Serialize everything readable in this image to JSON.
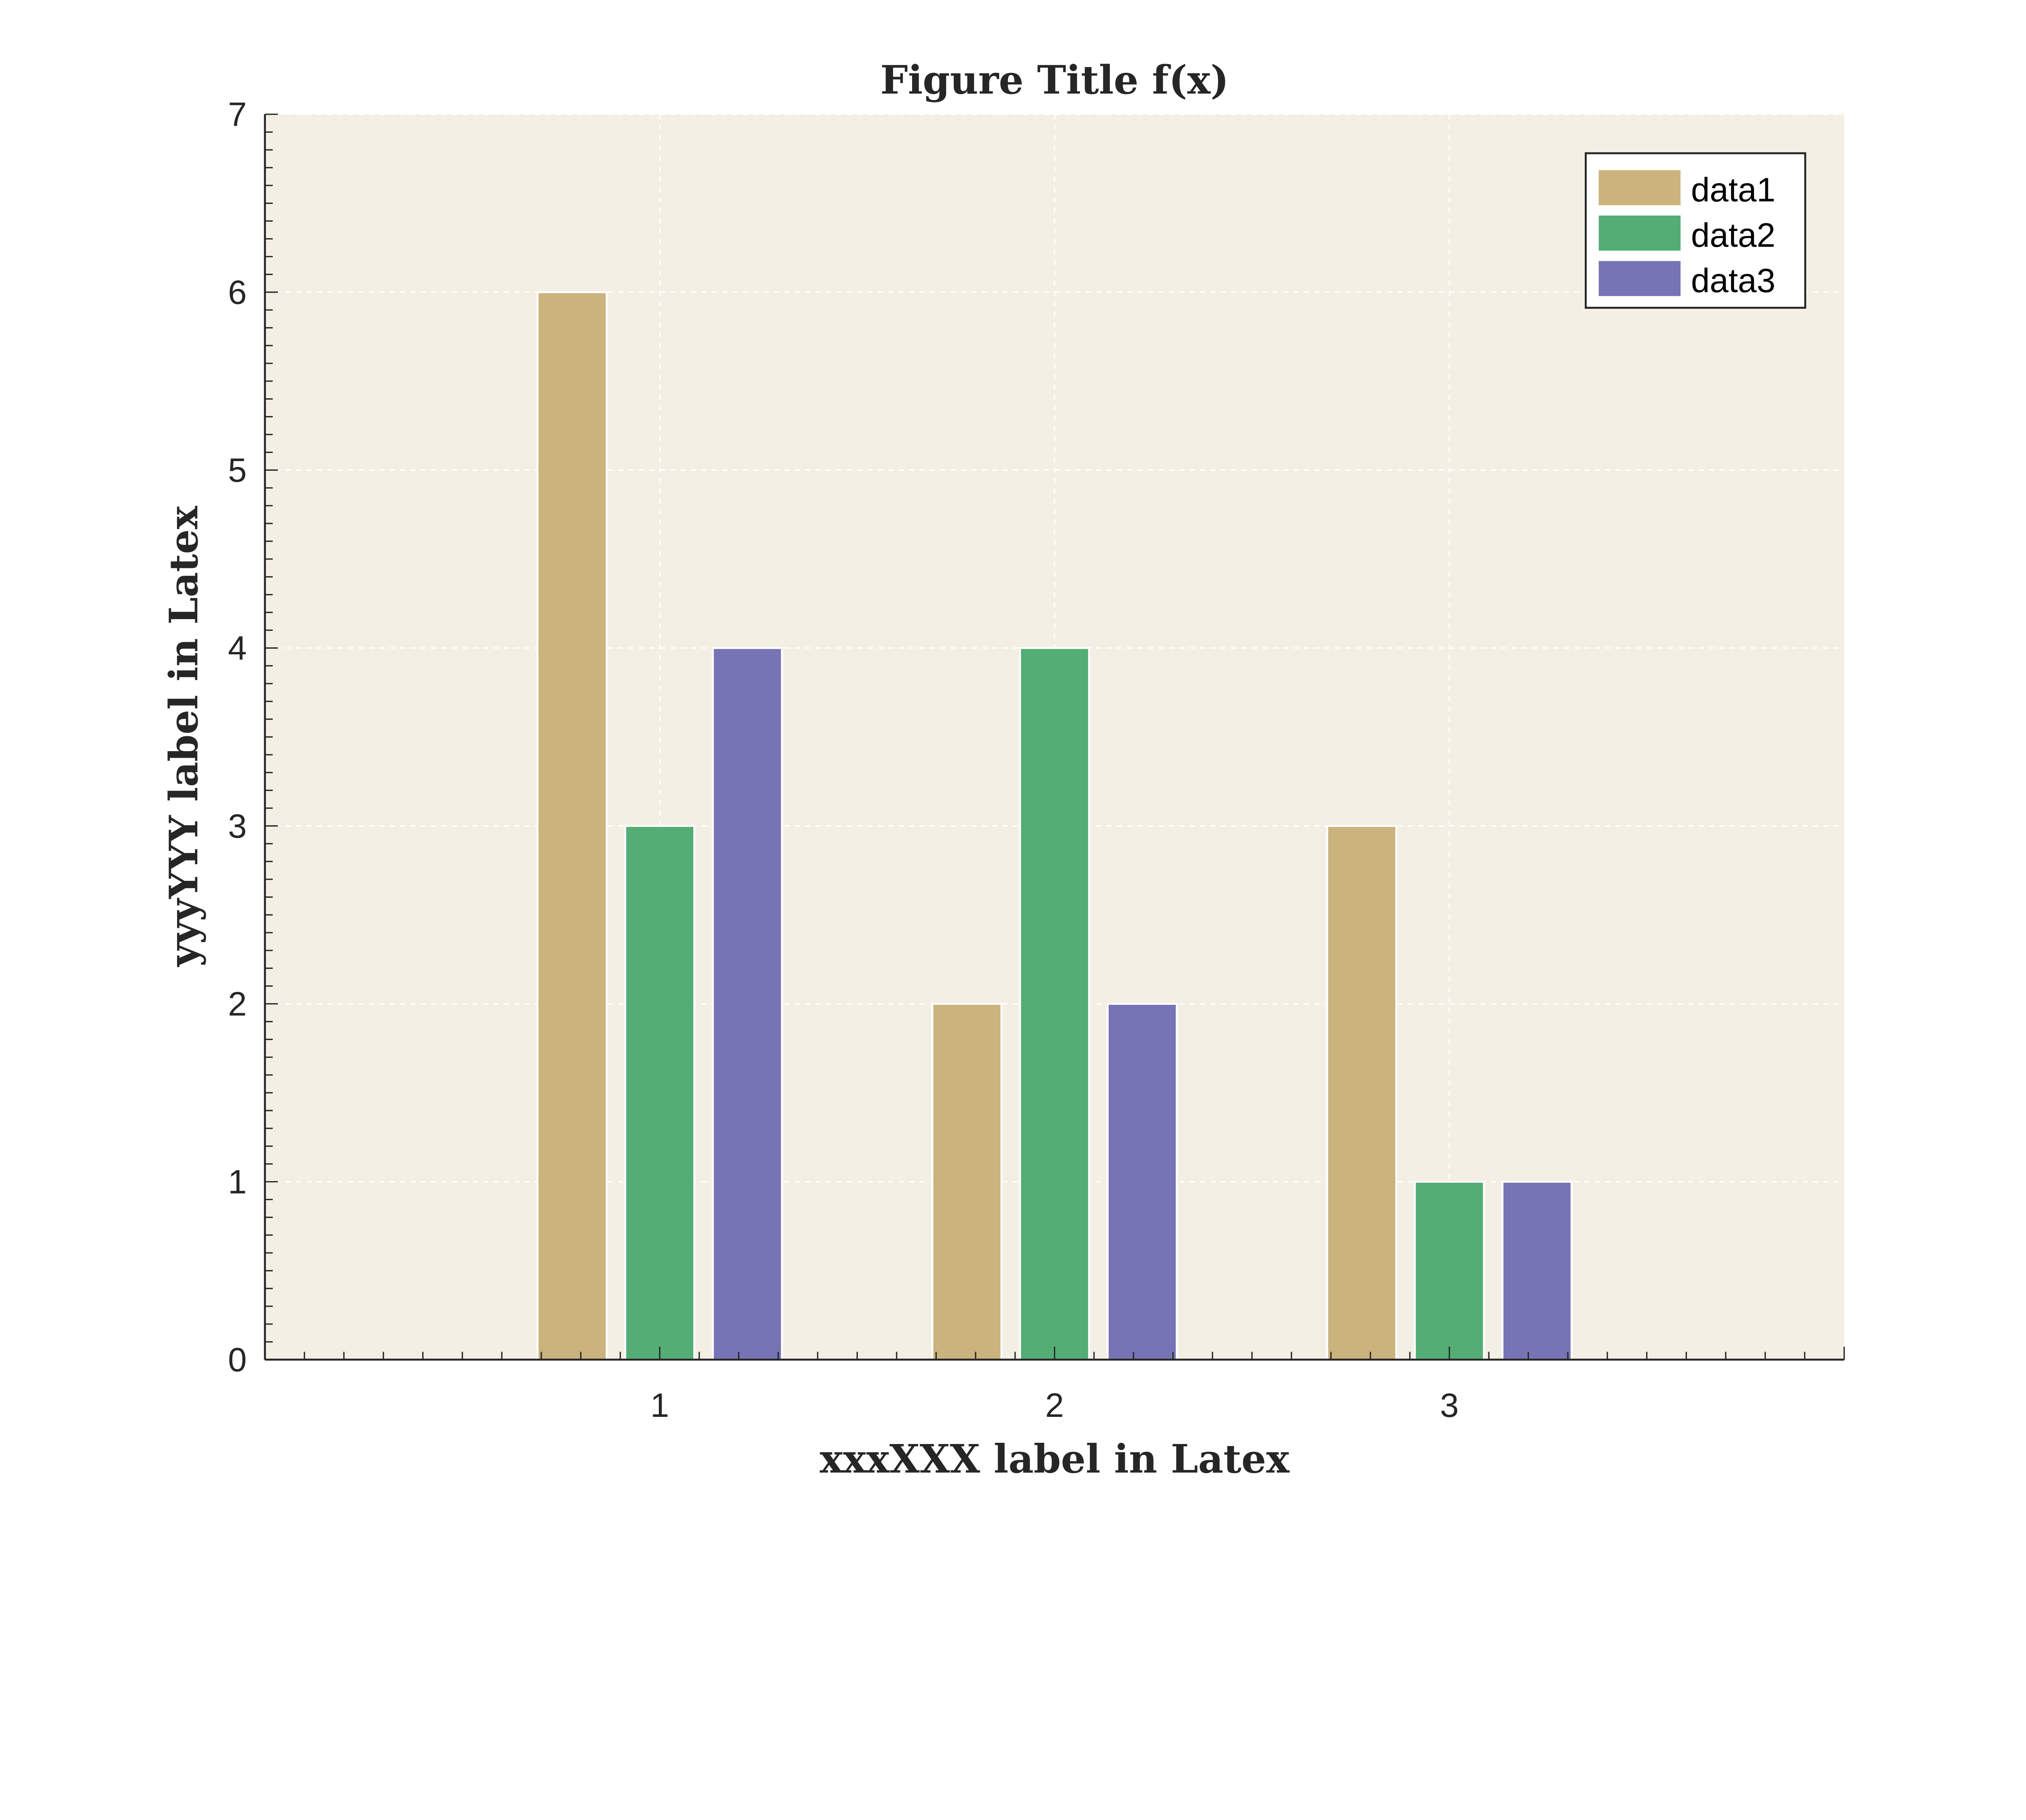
{
  "chart_data": {
    "type": "bar",
    "title": "Figure Title f(x)",
    "xlabel": "xxxXXX label in Latex",
    "ylabel": "yyyYYY label in Latex",
    "categories": [
      1,
      2,
      3
    ],
    "xlim": [
      0,
      4
    ],
    "ylim": [
      0,
      7
    ],
    "xticks": [
      "1",
      "2",
      "3"
    ],
    "yticks": [
      "0",
      "1",
      "2",
      "3",
      "4",
      "5",
      "6",
      "7"
    ],
    "grid": true,
    "legend_position": "top-right",
    "background_color": "#f3efe4",
    "series": [
      {
        "name": "data1",
        "values": [
          6,
          2,
          3
        ],
        "color": "#cab37c"
      },
      {
        "name": "data2",
        "values": [
          3,
          4,
          1
        ],
        "color": "#53ad75"
      },
      {
        "name": "data3",
        "values": [
          4,
          2,
          1
        ],
        "color": "#7674b4"
      }
    ]
  }
}
